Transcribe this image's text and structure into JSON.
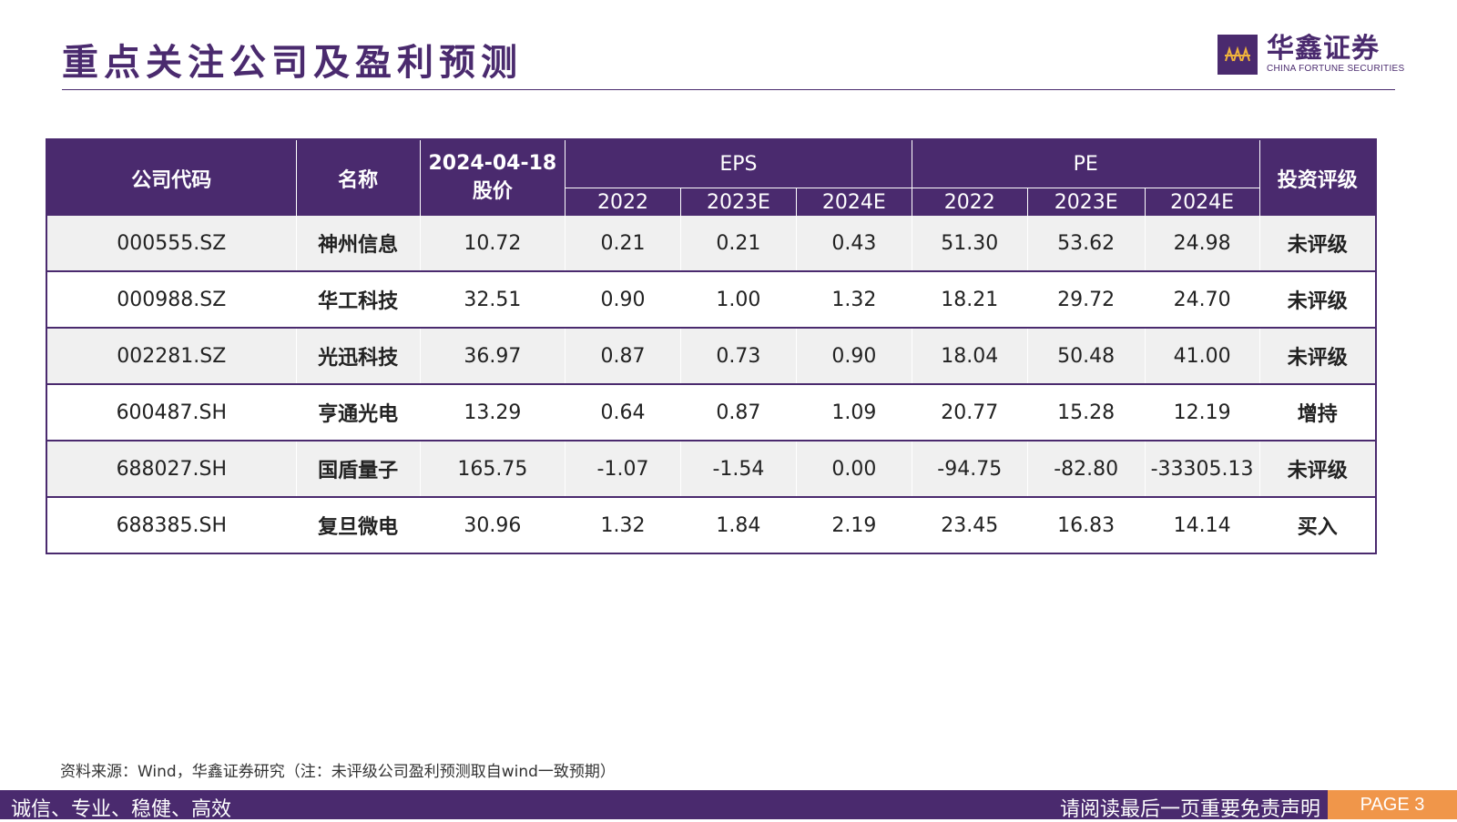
{
  "header": {
    "title": "重点关注公司及盈利预测",
    "logo_cn": "华鑫证券",
    "logo_en": "CHINA FORTUNE SECURITIES"
  },
  "table": {
    "headers": {
      "code": "公司代码",
      "name": "名称",
      "price_line1": "2024-04-18",
      "price_line2": "股价",
      "eps": "EPS",
      "pe": "PE",
      "rating": "投资评级",
      "years": [
        "2022",
        "2023E",
        "2024E"
      ]
    },
    "rows": [
      {
        "code": "000555.SZ",
        "name": "神州信息",
        "price": "10.72",
        "eps": [
          "0.21",
          "0.21",
          "0.43"
        ],
        "pe": [
          "51.30",
          "53.62",
          "24.98"
        ],
        "rating": "未评级"
      },
      {
        "code": "000988.SZ",
        "name": "华工科技",
        "price": "32.51",
        "eps": [
          "0.90",
          "1.00",
          "1.32"
        ],
        "pe": [
          "18.21",
          "29.72",
          "24.70"
        ],
        "rating": "未评级"
      },
      {
        "code": "002281.SZ",
        "name": "光迅科技",
        "price": "36.97",
        "eps": [
          "0.87",
          "0.73",
          "0.90"
        ],
        "pe": [
          "18.04",
          "50.48",
          "41.00"
        ],
        "rating": "未评级"
      },
      {
        "code": "600487.SH",
        "name": "亨通光电",
        "price": "13.29",
        "eps": [
          "0.64",
          "0.87",
          "1.09"
        ],
        "pe": [
          "20.77",
          "15.28",
          "12.19"
        ],
        "rating": "增持"
      },
      {
        "code": "688027.SH",
        "name": "国盾量子",
        "price": "165.75",
        "eps": [
          "-1.07",
          "-1.54",
          "0.00"
        ],
        "pe": [
          "-94.75",
          "-82.80",
          "-33305.13"
        ],
        "rating": "未评级"
      },
      {
        "code": "688385.SH",
        "name": "复旦微电",
        "price": "30.96",
        "eps": [
          "1.32",
          "1.84",
          "2.19"
        ],
        "pe": [
          "23.45",
          "16.83",
          "14.14"
        ],
        "rating": "买入"
      }
    ]
  },
  "source": "资料来源：Wind，华鑫证券研究（注：未评级公司盈利预测取自wind一致预期）",
  "footer": {
    "slogan": "诚信、专业、稳健、高效",
    "disclaimer": "请阅读最后一页重要免责声明",
    "page": "PAGE 3"
  },
  "colors": {
    "brand": "#4a2a6e",
    "accent": "#f0964a",
    "row_alt": "#f0f0f0"
  },
  "icons": {
    "logo": "china-fortune-logo-icon"
  }
}
